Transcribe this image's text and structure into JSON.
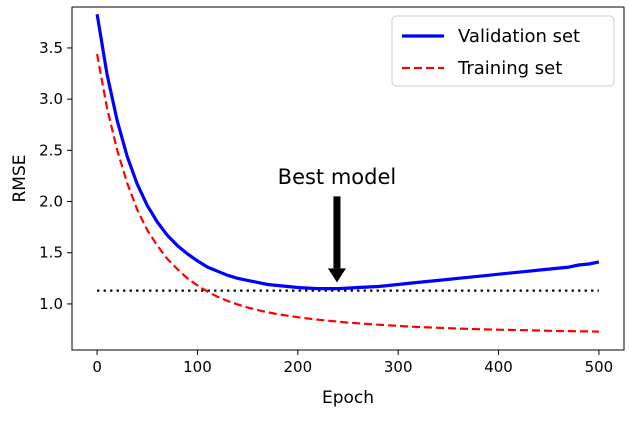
{
  "chart_data": {
    "type": "line",
    "title": "",
    "xlabel": "Epoch",
    "ylabel": "RMSE",
    "xlim": [
      -25,
      525
    ],
    "ylim": [
      0.55,
      3.9
    ],
    "xticks": [
      0,
      100,
      200,
      300,
      400,
      500
    ],
    "xtick_labels": [
      "0",
      "100",
      "200",
      "300",
      "400",
      "500"
    ],
    "yticks": [
      1.0,
      1.5,
      2.0,
      2.5,
      3.0,
      3.5
    ],
    "ytick_labels": [
      "1.0",
      "1.5",
      "2.0",
      "2.5",
      "3.0",
      "3.5"
    ],
    "grid": false,
    "legend_position": "top-right",
    "series": [
      {
        "name": "Validation set",
        "color": "#0000ff",
        "style": "solid",
        "x": [
          0,
          10,
          20,
          30,
          40,
          50,
          60,
          70,
          80,
          90,
          100,
          110,
          120,
          130,
          140,
          150,
          160,
          170,
          180,
          190,
          200,
          210,
          220,
          230,
          240,
          250,
          260,
          270,
          280,
          290,
          300,
          310,
          320,
          330,
          340,
          350,
          360,
          370,
          380,
          390,
          400,
          410,
          420,
          430,
          440,
          450,
          460,
          470,
          480,
          490,
          500
        ],
        "y": [
          3.83,
          3.24,
          2.79,
          2.44,
          2.17,
          1.96,
          1.8,
          1.67,
          1.57,
          1.49,
          1.42,
          1.36,
          1.32,
          1.28,
          1.25,
          1.23,
          1.21,
          1.19,
          1.18,
          1.17,
          1.16,
          1.155,
          1.15,
          1.15,
          1.15,
          1.155,
          1.16,
          1.165,
          1.17,
          1.18,
          1.19,
          1.2,
          1.21,
          1.22,
          1.23,
          1.24,
          1.25,
          1.26,
          1.27,
          1.28,
          1.29,
          1.3,
          1.31,
          1.32,
          1.33,
          1.34,
          1.35,
          1.36,
          1.38,
          1.39,
          1.41
        ]
      },
      {
        "name": "Training set",
        "color": "#ff0000",
        "style": "dashed",
        "x": [
          0,
          10,
          20,
          30,
          40,
          50,
          60,
          70,
          80,
          90,
          100,
          110,
          120,
          130,
          140,
          150,
          160,
          170,
          180,
          190,
          200,
          210,
          220,
          230,
          240,
          250,
          260,
          270,
          280,
          290,
          300,
          310,
          320,
          330,
          340,
          350,
          360,
          370,
          380,
          390,
          400,
          410,
          420,
          430,
          440,
          450,
          460,
          470,
          480,
          490,
          500
        ],
        "y": [
          3.44,
          2.91,
          2.5,
          2.18,
          1.92,
          1.72,
          1.57,
          1.44,
          1.34,
          1.25,
          1.18,
          1.12,
          1.07,
          1.03,
          0.995,
          0.965,
          0.94,
          0.918,
          0.9,
          0.885,
          0.87,
          0.858,
          0.846,
          0.836,
          0.827,
          0.818,
          0.811,
          0.804,
          0.797,
          0.791,
          0.785,
          0.78,
          0.775,
          0.771,
          0.767,
          0.763,
          0.759,
          0.756,
          0.753,
          0.75,
          0.748,
          0.746,
          0.744,
          0.742,
          0.74,
          0.738,
          0.736,
          0.735,
          0.733,
          0.732,
          0.73
        ]
      }
    ],
    "reference_line": {
      "y": 1.13,
      "x_range": [
        0,
        500
      ],
      "color": "#000000",
      "style": "dotted"
    },
    "annotation": {
      "text": "Best model",
      "text_x": 239,
      "text_y": 2.15,
      "arrow_from_y": 2.05,
      "arrow_to_x": 239,
      "arrow_to_y": 1.21
    }
  }
}
